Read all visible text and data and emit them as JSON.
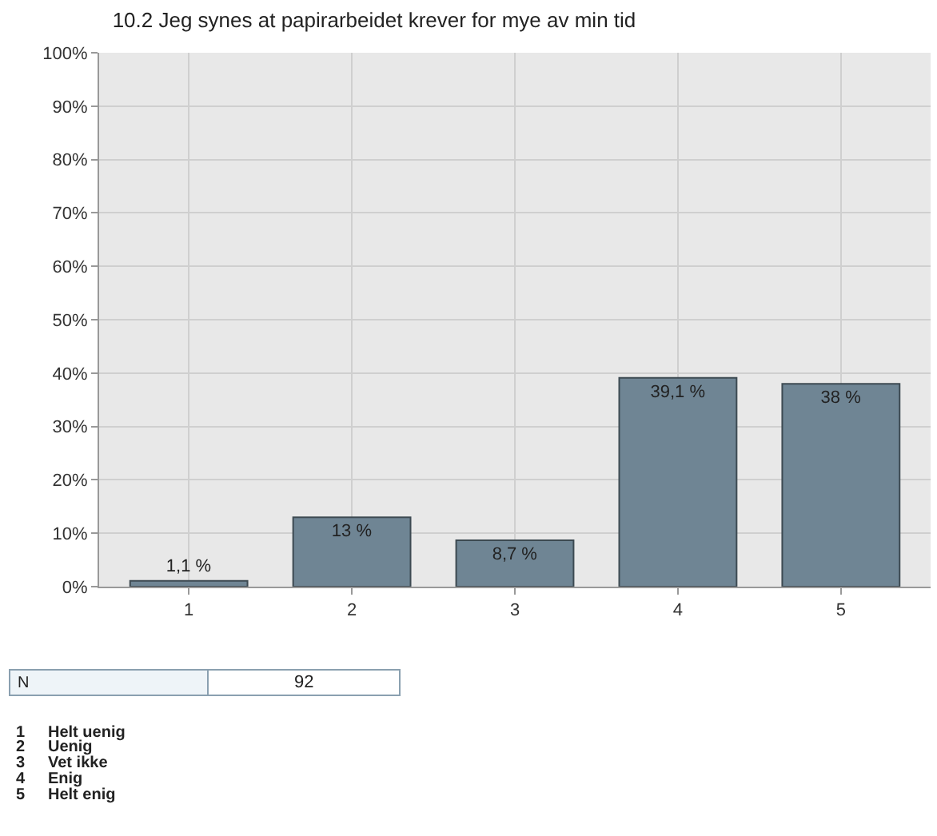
{
  "chart_data": {
    "type": "bar",
    "title": "10.2 Jeg synes at papirarbeidet krever for mye av min tid",
    "categories": [
      "1",
      "2",
      "3",
      "4",
      "5"
    ],
    "values": [
      1.1,
      13,
      8.7,
      39.1,
      38
    ],
    "value_labels": [
      "1,1 %",
      "13 %",
      "8,7 %",
      "39,1 %",
      "38 %"
    ],
    "color": "#6f8594",
    "ylim": [
      0,
      100
    ],
    "yticks": [
      {
        "value": 0,
        "label": "0%"
      },
      {
        "value": 10,
        "label": "10%"
      },
      {
        "value": 20,
        "label": "20%"
      },
      {
        "value": 30,
        "label": "30%"
      },
      {
        "value": 40,
        "label": "40%"
      },
      {
        "value": 50,
        "label": "50%"
      },
      {
        "value": 60,
        "label": "60%"
      },
      {
        "value": 70,
        "label": "70%"
      },
      {
        "value": 80,
        "label": "80%"
      },
      {
        "value": 90,
        "label": "90%"
      },
      {
        "value": 100,
        "label": "100%"
      }
    ],
    "grid": true,
    "annotations": [
      "N",
      "92",
      "1",
      "Helt uenig",
      "2",
      "Uenig",
      "3",
      "Vet ikke",
      "4",
      "Enig",
      "5",
      "Helt enig"
    ]
  }
}
